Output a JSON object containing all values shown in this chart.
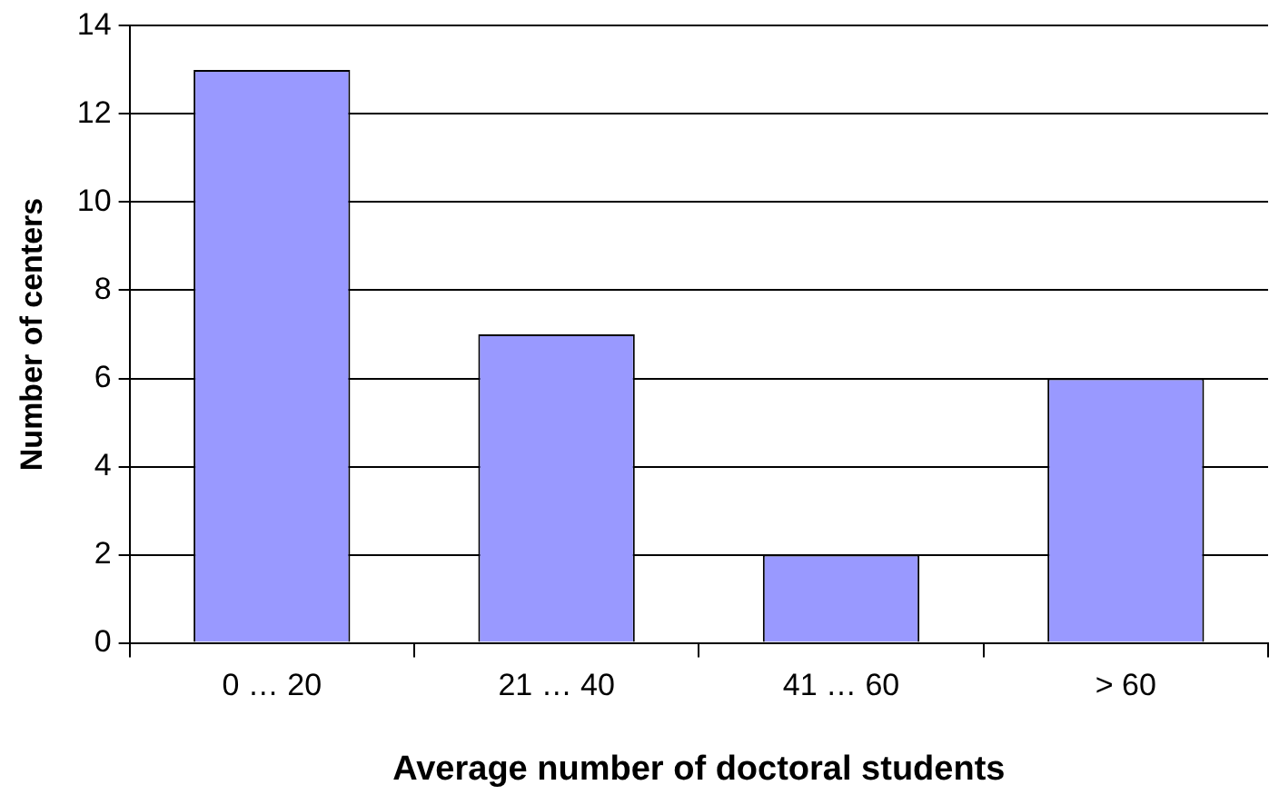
{
  "chart_data": {
    "type": "bar",
    "xlabel": "Average number of doctoral students",
    "ylabel": "Number of centers",
    "categories": [
      "0 … 20",
      "21 … 40",
      "41 … 60",
      "> 60"
    ],
    "values": [
      13,
      7,
      2,
      6
    ],
    "color": "#9999ff",
    "ylim": [
      0,
      14
    ],
    "yticks": [
      0,
      2,
      4,
      6,
      8,
      10,
      12,
      14
    ],
    "grid": "y",
    "legend": false
  }
}
